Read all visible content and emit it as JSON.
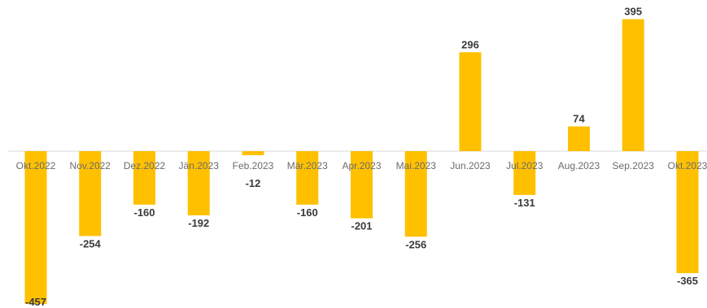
{
  "chart_data": {
    "type": "bar",
    "title": "",
    "xlabel": "",
    "ylabel": "",
    "categories": [
      "Okt.2022",
      "Nov.2022",
      "Dez.2022",
      "Jän.2023",
      "Feb.2023",
      "Mär.2023",
      "Apr.2023",
      "Mai.2023",
      "Jun.2023",
      "Jul.2023",
      "Aug.2023",
      "Sep.2023",
      "Okt.2023"
    ],
    "values": [
      -457,
      -254,
      -160,
      -192,
      -12,
      -160,
      -201,
      -256,
      296,
      -131,
      74,
      395,
      -365
    ],
    "data_labels": [
      "-457",
      "-254",
      "-160",
      "-192",
      "-12",
      "-160",
      "-201",
      "-256",
      "296",
      "-131",
      "74",
      "395",
      "-365"
    ],
    "ylim": [
      -457,
      395
    ],
    "grid": false,
    "legend": "none",
    "bar_color": "#FFC000",
    "axis_color": "#d9d9d9",
    "label_color": "#3a3a3a",
    "tick_color": "#6b6b6b"
  }
}
